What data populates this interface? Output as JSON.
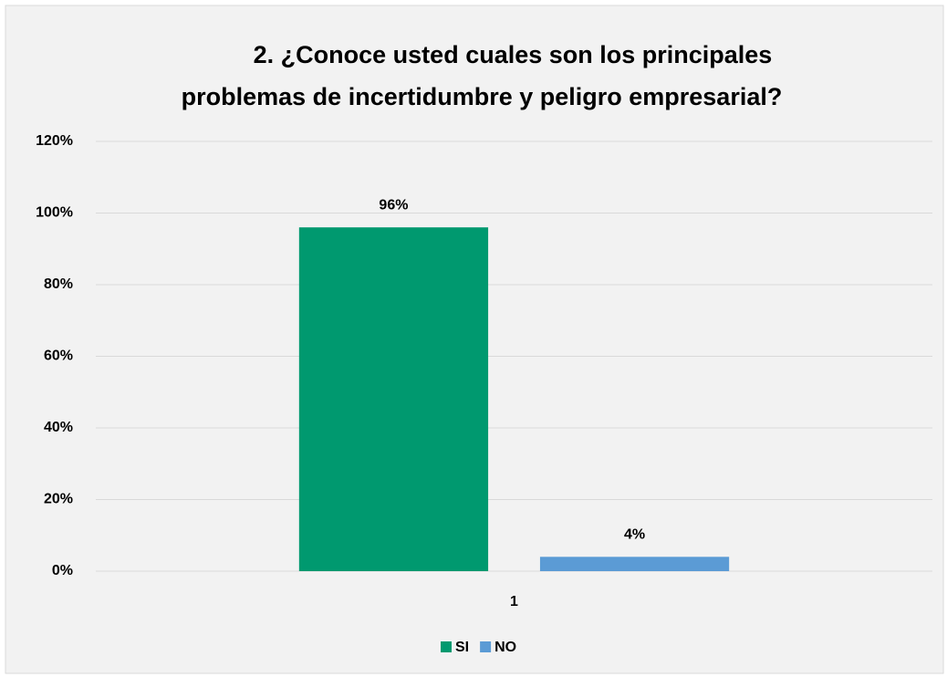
{
  "chart_data": {
    "type": "bar",
    "title": [
      "2. ¿Conoce usted cuales son los principales",
      "problemas de incertidumbre y peligro empresarial?"
    ],
    "categories": [
      "1"
    ],
    "series": [
      {
        "name": "SI",
        "color": "#00996f",
        "values": [
          96
        ],
        "value_labels": [
          "96%"
        ]
      },
      {
        "name": "NO",
        "color": "#5b9bd5",
        "values": [
          4
        ],
        "value_labels": [
          "4%"
        ]
      }
    ],
    "ylim": [
      0,
      120
    ],
    "yticks": [
      {
        "value": 0,
        "label": "0%"
      },
      {
        "value": 20,
        "label": "20%"
      },
      {
        "value": 40,
        "label": "40%"
      },
      {
        "value": 60,
        "label": "60%"
      },
      {
        "value": 80,
        "label": "80%"
      },
      {
        "value": 100,
        "label": "100%"
      },
      {
        "value": 120,
        "label": "120%"
      }
    ],
    "grid": true,
    "legend": "bottom"
  }
}
